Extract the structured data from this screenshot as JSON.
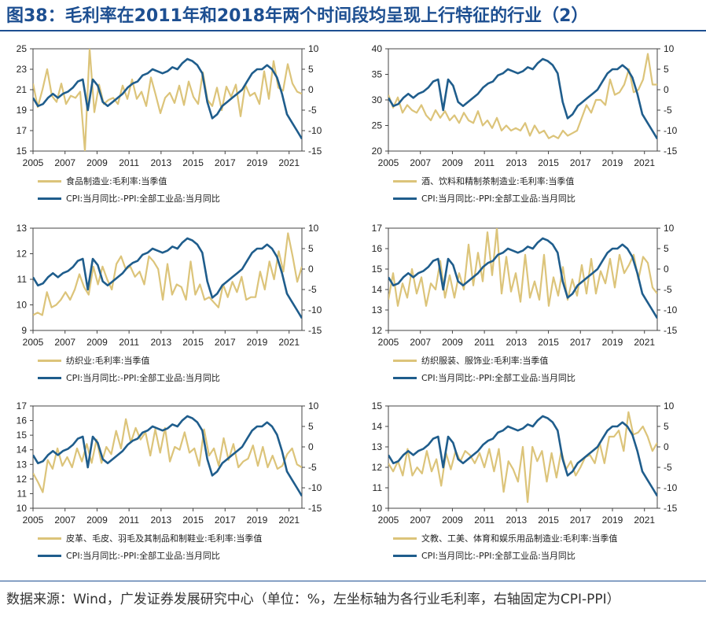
{
  "title": "图38：毛利率在2011年和2018年两个时间段均呈现上行特征的行业（2）",
  "source": "数据来源：Wind，广发证券发展研究中心（单位：%，左坐标轴为各行业毛利率，右轴固定为CPI-PPI）",
  "colors": {
    "gold": "#dcc47a",
    "blue": "#1f5d8c",
    "title": "#1d4f91"
  },
  "chart_data": [
    {
      "type": "line",
      "x_ticks": [
        "2005",
        "2007",
        "2009",
        "2011",
        "2013",
        "2015",
        "2017",
        "2019",
        "2021"
      ],
      "left_ticks": [
        "25",
        "23",
        "21",
        "19",
        "17",
        "15"
      ],
      "left_range": [
        15,
        25
      ],
      "right_ticks": [
        "10",
        "5",
        "0",
        "-5",
        "-10",
        "-15"
      ],
      "right_range": [
        -15,
        10
      ],
      "series": [
        {
          "name": "食品制造业:毛利率:当季值",
          "axis": "left",
          "color": "gold",
          "values": [
            21.6,
            19.3,
            21,
            23,
            20.4,
            19.8,
            21.6,
            19.6,
            20.4,
            20.2,
            20.8,
            15,
            25,
            18.8,
            21.5,
            19.6,
            20,
            20.2,
            19.6,
            21.4,
            20.1,
            22,
            20.1,
            20.8,
            19.4,
            22.2,
            20.5,
            18.7,
            20.2,
            20.7,
            19.7,
            21.4,
            19.5,
            21.8,
            20.3,
            19.6,
            22.7,
            20,
            19.4,
            21.2,
            19,
            21.3,
            20.3,
            21.5,
            18.4,
            21.5,
            20.4,
            20.7,
            19.6,
            22.8,
            20.1,
            23.8,
            21.2,
            20.9,
            23.5,
            21.6,
            20.8,
            20.6
          ]
        },
        {
          "name": "CPI:当月同比:-PPI:全部工业品:当月同比",
          "axis": "right",
          "color": "blue",
          "values": [
            -2,
            -4,
            -3.5,
            -2,
            -1,
            -2,
            -1,
            -0.5,
            0.5,
            2,
            2.5,
            -5,
            2.5,
            1,
            -3,
            -4,
            -3,
            -2,
            -1,
            0.5,
            1.5,
            2,
            3.5,
            4,
            5,
            4.5,
            4,
            4.5,
            5.5,
            5,
            6.5,
            7.5,
            7,
            6,
            4,
            -3,
            -7,
            -6,
            -4,
            -3,
            -2,
            -1,
            0,
            2,
            4,
            5,
            5,
            6,
            5,
            3,
            -1,
            -6,
            -8,
            -10,
            -12
          ]
        }
      ]
    },
    {
      "type": "line",
      "x_ticks": [
        "2005",
        "2007",
        "2009",
        "2011",
        "2013",
        "2015",
        "2017",
        "2019",
        "2021"
      ],
      "left_ticks": [
        "40",
        "35",
        "30",
        "25",
        "20"
      ],
      "left_range": [
        20,
        40
      ],
      "right_ticks": [
        "10",
        "5",
        "0",
        "-5",
        "-10",
        "-15"
      ],
      "right_range": [
        -15,
        10
      ],
      "series": [
        {
          "name": "酒、饮料和精制茶制造业:毛利率:当季值",
          "axis": "left",
          "color": "gold",
          "values": [
            31,
            28.5,
            30.5,
            27.5,
            29,
            28,
            27.5,
            29,
            27,
            26,
            28,
            26.5,
            27.8,
            26,
            27,
            25.5,
            27.5,
            26,
            25.5,
            27.8,
            25,
            26,
            24.5,
            26.5,
            24,
            25,
            24,
            24.5,
            24,
            25.5,
            23,
            25,
            23.5,
            24,
            22.5,
            23,
            22.5,
            24,
            23,
            23.5,
            24,
            26.5,
            29,
            27.5,
            30,
            30,
            29,
            34,
            31,
            31.5,
            33,
            36,
            31.5,
            32,
            34,
            39,
            33,
            33
          ]
        },
        {
          "name": "CPI:当月同比:-PPI:全部工业品:当月同比",
          "axis": "right",
          "color": "blue",
          "values": [
            -2,
            -4,
            -3.5,
            -2,
            -1,
            -2,
            -1,
            -0.5,
            0.5,
            2,
            2.5,
            -5,
            2.5,
            1,
            -3,
            -4,
            -3,
            -2,
            -1,
            0.5,
            1.5,
            2,
            3.5,
            4,
            5,
            4.5,
            4,
            4.5,
            5.5,
            5,
            6.5,
            7.5,
            7,
            6,
            4,
            -3,
            -7,
            -6,
            -4,
            -3,
            -2,
            -1,
            0,
            2,
            4,
            5,
            5,
            6,
            5,
            3,
            -1,
            -6,
            -8,
            -10,
            -12
          ]
        }
      ]
    },
    {
      "type": "line",
      "x_ticks": [
        "2005",
        "2007",
        "2009",
        "2011",
        "2013",
        "2015",
        "2017",
        "2019",
        "2021"
      ],
      "left_ticks": [
        "13",
        "12",
        "11",
        "10",
        "9"
      ],
      "left_range": [
        9,
        13
      ],
      "right_ticks": [
        "10",
        "5",
        "0",
        "-5",
        "-10",
        "-15"
      ],
      "right_range": [
        -15,
        10
      ],
      "series": [
        {
          "name": "纺织业:毛利率:当季值",
          "axis": "left",
          "color": "gold",
          "values": [
            9.6,
            9.7,
            9.6,
            10.5,
            9.9,
            10,
            10.2,
            10.5,
            10.2,
            10.6,
            11.2,
            10.7,
            10.4,
            11.5,
            10.8,
            11.5,
            11,
            10.6,
            11.6,
            11.9,
            11.4,
            11.5,
            11.1,
            11.3,
            10.8,
            11.9,
            11.7,
            11.4,
            10.2,
            11.6,
            10.4,
            10.8,
            10.7,
            10.2,
            11.7,
            10.4,
            10.8,
            10.2,
            10.3,
            10.1,
            9.9,
            10.8,
            10.3,
            10.9,
            10.5,
            11.1,
            10.2,
            10.3,
            10.3,
            11.3,
            10.6,
            11.7,
            11,
            12.1,
            11.3,
            12.8,
            11.9,
            10.9,
            11.5
          ]
        },
        {
          "name": "CPI:当月同比:-PPI:全部工业品:当月同比",
          "axis": "right",
          "color": "blue",
          "values": [
            -2,
            -4,
            -3.5,
            -2,
            -1,
            -2,
            -1,
            -0.5,
            0.5,
            2,
            2.5,
            -5,
            2.5,
            1,
            -3,
            -4,
            -3,
            -2,
            -1,
            0.5,
            1.5,
            2,
            3.5,
            4,
            5,
            4.5,
            4,
            4.5,
            5.5,
            5,
            6.5,
            7.5,
            7,
            6,
            4,
            -3,
            -7,
            -6,
            -4,
            -3,
            -2,
            -1,
            0,
            2,
            4,
            5,
            5,
            6,
            5,
            3,
            -1,
            -6,
            -8,
            -10,
            -12
          ]
        }
      ]
    },
    {
      "type": "line",
      "x_ticks": [
        "2005",
        "2007",
        "2009",
        "2011",
        "2013",
        "2015",
        "2017",
        "2019",
        "2021"
      ],
      "left_ticks": [
        "17",
        "16",
        "15",
        "14",
        "13",
        "12"
      ],
      "left_range": [
        12,
        17
      ],
      "right_ticks": [
        "10",
        "5",
        "0",
        "-5",
        "-10",
        "-15"
      ],
      "right_range": [
        -15,
        10
      ],
      "series": [
        {
          "name": "纺织服装、服饰业:毛利率:当季值",
          "axis": "left",
          "color": "gold",
          "values": [
            13.5,
            14.8,
            13.2,
            14.3,
            13.6,
            15,
            13.8,
            14.6,
            13.2,
            14.3,
            14,
            15.4,
            13.6,
            14.7,
            13.6,
            14.8,
            14,
            16.2,
            14.2,
            15.8,
            14.4,
            16.8,
            14.7,
            17,
            13.8,
            15.6,
            13.9,
            14.8,
            13.4,
            15.7,
            13.6,
            14.4,
            13.5,
            15.7,
            13.2,
            14.6,
            13.7,
            15.1,
            13.5,
            14.5,
            13.7,
            15.2,
            13.8,
            15.5,
            13.8,
            14.9,
            14.3,
            15.5,
            14.1,
            15.7,
            14.8,
            15.2,
            15.7,
            14.5,
            15.6,
            15.3,
            14.1,
            13.8
          ]
        },
        {
          "name": "CPI:当月同比:-PPI:全部工业品:当月同比",
          "axis": "right",
          "color": "blue",
          "values": [
            -2,
            -4,
            -3.5,
            -2,
            -1,
            -2,
            -1,
            -0.5,
            0.5,
            2,
            2.5,
            -5,
            2.5,
            1,
            -3,
            -4,
            -3,
            -2,
            -1,
            0.5,
            1.5,
            2,
            3.5,
            4,
            5,
            4.5,
            4,
            4.5,
            5.5,
            5,
            6.5,
            7.5,
            7,
            6,
            4,
            -3,
            -7,
            -6,
            -4,
            -3,
            -2,
            -1,
            0,
            2,
            4,
            5,
            5,
            6,
            5,
            3,
            -1,
            -6,
            -8,
            -10,
            -12
          ]
        }
      ]
    },
    {
      "type": "line",
      "x_ticks": [
        "2005",
        "2007",
        "2009",
        "2011",
        "2013",
        "2015",
        "2017",
        "2019",
        "2021"
      ],
      "left_ticks": [
        "17",
        "16",
        "15",
        "14",
        "13",
        "12",
        "11",
        "10"
      ],
      "left_range": [
        10,
        17
      ],
      "right_ticks": [
        "10",
        "5",
        "0",
        "-5",
        "-10",
        "-15"
      ],
      "right_range": [
        -15,
        10
      ],
      "series": [
        {
          "name": "皮革、毛皮、羽毛及其制品和制鞋业:毛利率:当季值",
          "axis": "left",
          "color": "gold",
          "values": [
            12.4,
            11.8,
            11.1,
            13.3,
            12.7,
            14.1,
            12.9,
            13.5,
            12.8,
            14.1,
            13.2,
            14.4,
            13.1,
            14.7,
            13.1,
            14.2,
            13.7,
            15.3,
            14.1,
            16.1,
            14.5,
            15.5,
            14.7,
            15.2,
            13.6,
            15.4,
            13.8,
            15.5,
            13.2,
            14.2,
            14,
            15.2,
            13.8,
            14.1,
            12.9,
            15.4,
            13.6,
            14.1,
            12.9,
            14.8,
            13.3,
            14.4,
            12.8,
            13.2,
            13.4,
            14.3,
            12.9,
            14.2,
            12.8,
            13.6,
            12.7,
            12.9,
            13.7,
            14.1,
            13,
            12.8
          ]
        },
        {
          "name": "CPI:当月同比:-PPI:全部工业品:当月同比",
          "axis": "right",
          "color": "blue",
          "values": [
            -2,
            -4,
            -3.5,
            -2,
            -1,
            -2,
            -1,
            -0.5,
            0.5,
            2,
            2.5,
            -5,
            2.5,
            1,
            -3,
            -4,
            -3,
            -2,
            -1,
            0.5,
            1.5,
            2,
            3.5,
            4,
            5,
            4.5,
            4,
            4.5,
            5.5,
            5,
            6.5,
            7.5,
            7,
            6,
            4,
            -3,
            -7,
            -6,
            -4,
            -3,
            -2,
            -1,
            0,
            2,
            4,
            5,
            5,
            6,
            5,
            3,
            -1,
            -6,
            -8,
            -10,
            -12
          ]
        }
      ]
    },
    {
      "type": "line",
      "x_ticks": [
        "2005",
        "2007",
        "2009",
        "2011",
        "2013",
        "2015",
        "2017",
        "2019",
        "2021"
      ],
      "left_ticks": [
        "15",
        "14",
        "13",
        "12",
        "11",
        "10"
      ],
      "left_range": [
        10,
        15
      ],
      "right_ticks": [
        "10",
        "5",
        "0",
        "-5",
        "-10",
        "-15"
      ],
      "right_range": [
        -15,
        10
      ],
      "series": [
        {
          "name": "文教、工美、体育和娱乐用品制造业:毛利率:当季值",
          "axis": "left",
          "color": "gold",
          "values": [
            12.2,
            11.8,
            12.3,
            11.6,
            12.9,
            11.6,
            12,
            11.7,
            12.8,
            11.8,
            12.4,
            11.1,
            12.7,
            11.9,
            12.8,
            12.3,
            12.8,
            12.6,
            12.2,
            12.7,
            12,
            12.9,
            11.8,
            12.9,
            10.8,
            12.3,
            11.9,
            11.3,
            13,
            10.3,
            13,
            12.3,
            12.8,
            11.3,
            12.7,
            11.5,
            12.8,
            11.9,
            12.3,
            11.6,
            12,
            12.5,
            12.6,
            12.2,
            13.2,
            12.2,
            13.5,
            13.5,
            13.8,
            12.8,
            14.7,
            13.6,
            13.7,
            14,
            13.5,
            12.8,
            13.2
          ]
        },
        {
          "name": "CPI:当月同比:-PPI:全部工业品:当月同比",
          "axis": "right",
          "color": "blue",
          "values": [
            -2,
            -4,
            -3.5,
            -2,
            -1,
            -2,
            -1,
            -0.5,
            0.5,
            2,
            2.5,
            -5,
            2.5,
            1,
            -3,
            -4,
            -3,
            -2,
            -1,
            0.5,
            1.5,
            2,
            3.5,
            4,
            5,
            4.5,
            4,
            4.5,
            5.5,
            5,
            6.5,
            7.5,
            7,
            6,
            4,
            -3,
            -7,
            -6,
            -4,
            -3,
            -2,
            -1,
            0,
            2,
            4,
            5,
            5,
            6,
            5,
            3,
            -1,
            -6,
            -8,
            -10,
            -12
          ]
        }
      ]
    }
  ]
}
